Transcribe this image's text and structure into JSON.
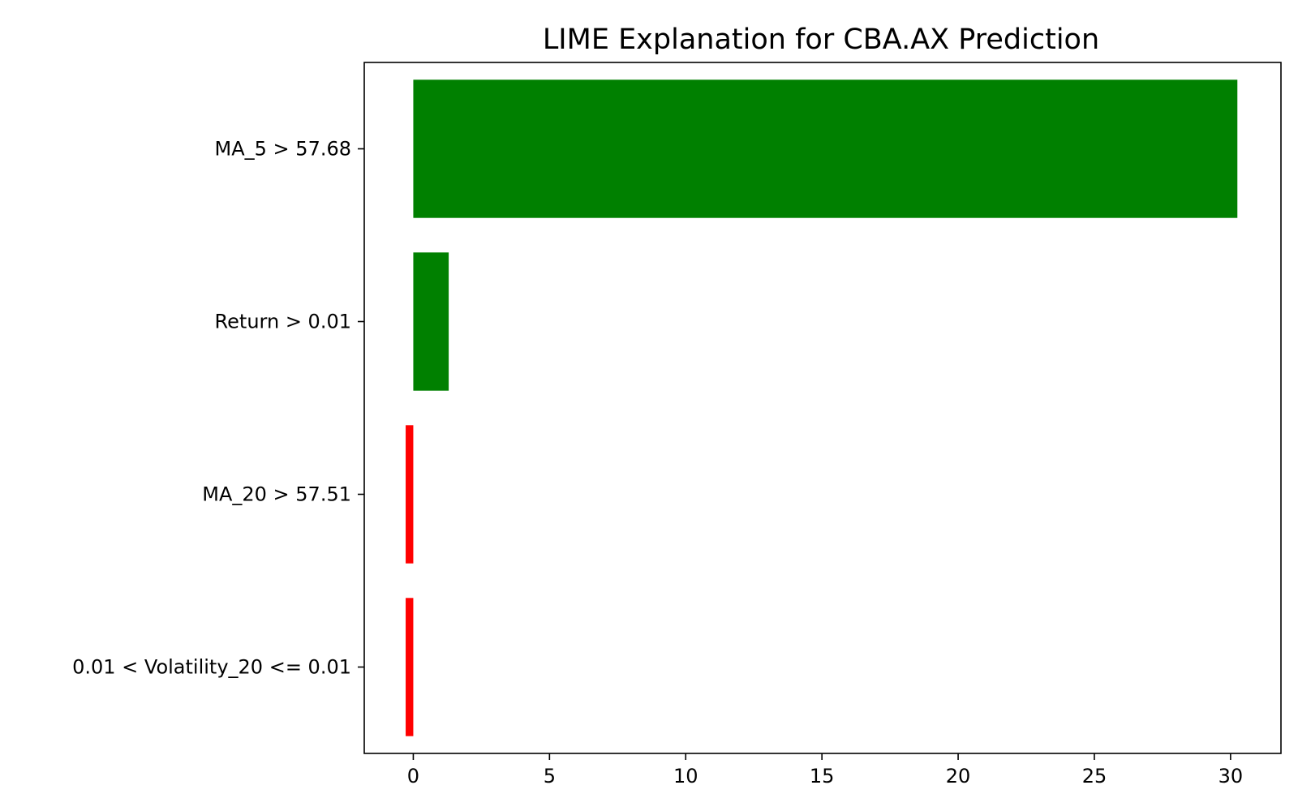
{
  "chart_data": {
    "type": "bar",
    "orientation": "horizontal",
    "title": "LIME Explanation for CBA.AX Prediction",
    "xlabel": "",
    "ylabel": "",
    "categories": [
      "MA_5 > 57.68",
      "Return > 0.01",
      "MA_20 > 57.51",
      "0.01 < Volatility_20 <= 0.01"
    ],
    "values": [
      30.25,
      1.3,
      -0.28,
      -0.28
    ],
    "bar_colors": [
      "#008000",
      "#008000",
      "#ff0000",
      "#ff0000"
    ],
    "xlim": [
      -1.8,
      31.85
    ],
    "x_ticks": [
      0,
      5,
      10,
      15,
      20,
      25,
      30
    ],
    "grid": false,
    "legend": "none"
  }
}
